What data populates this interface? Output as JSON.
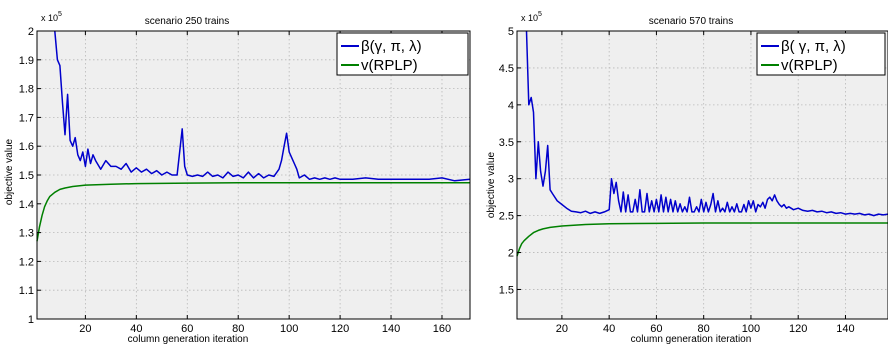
{
  "chart_data": [
    {
      "type": "line",
      "title": "scenario 250 trains",
      "xlabel": "column generation iteration",
      "ylabel": "objective value",
      "y_exponent": "x 10",
      "y_exponent_power": "5",
      "xlim": [
        1,
        171
      ],
      "ylim": [
        1.0,
        2.0
      ],
      "xticks": [
        20,
        40,
        60,
        80,
        100,
        120,
        140,
        160
      ],
      "yticks": [
        1,
        1.1,
        1.2,
        1.3,
        1.4,
        1.5,
        1.6,
        1.7,
        1.8,
        1.9,
        2
      ],
      "ytick_labels": [
        "1",
        "1.1",
        "1.2",
        "1.3",
        "1.4",
        "1.5",
        "1.6",
        "1.7",
        "1.8",
        "1.9",
        "2"
      ],
      "grid": true,
      "legend_position": "top-right",
      "series": [
        {
          "name": "β(γ, π, λ)",
          "color": "#0000cc",
          "points": [
            [
              8,
              2.0
            ],
            [
              9,
              1.9
            ],
            [
              10,
              1.88
            ],
            [
              11,
              1.75
            ],
            [
              12,
              1.64
            ],
            [
              13,
              1.78
            ],
            [
              14,
              1.62
            ],
            [
              15,
              1.6
            ],
            [
              16,
              1.63
            ],
            [
              17,
              1.57
            ],
            [
              18,
              1.55
            ],
            [
              19,
              1.58
            ],
            [
              20,
              1.53
            ],
            [
              21,
              1.59
            ],
            [
              22,
              1.54
            ],
            [
              23,
              1.57
            ],
            [
              24,
              1.55
            ],
            [
              26,
              1.52
            ],
            [
              28,
              1.55
            ],
            [
              30,
              1.53
            ],
            [
              32,
              1.53
            ],
            [
              34,
              1.52
            ],
            [
              36,
              1.54
            ],
            [
              38,
              1.51
            ],
            [
              40,
              1.525
            ],
            [
              42,
              1.51
            ],
            [
              44,
              1.52
            ],
            [
              46,
              1.505
            ],
            [
              48,
              1.515
            ],
            [
              50,
              1.5
            ],
            [
              52,
              1.51
            ],
            [
              54,
              1.5
            ],
            [
              56,
              1.5
            ],
            [
              58,
              1.66
            ],
            [
              59,
              1.53
            ],
            [
              60,
              1.5
            ],
            [
              62,
              1.495
            ],
            [
              64,
              1.5
            ],
            [
              66,
              1.495
            ],
            [
              68,
              1.51
            ],
            [
              70,
              1.495
            ],
            [
              72,
              1.5
            ],
            [
              74,
              1.49
            ],
            [
              76,
              1.51
            ],
            [
              78,
              1.495
            ],
            [
              80,
              1.5
            ],
            [
              82,
              1.49
            ],
            [
              84,
              1.51
            ],
            [
              86,
              1.49
            ],
            [
              88,
              1.505
            ],
            [
              90,
              1.49
            ],
            [
              92,
              1.5
            ],
            [
              94,
              1.495
            ],
            [
              96,
              1.52
            ],
            [
              97,
              1.55
            ],
            [
              98,
              1.6
            ],
            [
              99,
              1.645
            ],
            [
              100,
              1.58
            ],
            [
              101,
              1.56
            ],
            [
              102,
              1.54
            ],
            [
              103,
              1.52
            ],
            [
              104,
              1.49
            ],
            [
              106,
              1.5
            ],
            [
              108,
              1.485
            ],
            [
              110,
              1.49
            ],
            [
              112,
              1.485
            ],
            [
              114,
              1.49
            ],
            [
              116,
              1.485
            ],
            [
              118,
              1.49
            ],
            [
              120,
              1.485
            ],
            [
              125,
              1.485
            ],
            [
              130,
              1.49
            ],
            [
              135,
              1.485
            ],
            [
              140,
              1.485
            ],
            [
              145,
              1.485
            ],
            [
              150,
              1.485
            ],
            [
              155,
              1.485
            ],
            [
              160,
              1.49
            ],
            [
              165,
              1.48
            ],
            [
              171,
              1.485
            ]
          ]
        },
        {
          "name": "v(RPLP)",
          "color": "#008000",
          "points": [
            [
              1,
              1.27
            ],
            [
              2,
              1.32
            ],
            [
              3,
              1.36
            ],
            [
              4,
              1.39
            ],
            [
              5,
              1.41
            ],
            [
              6,
              1.425
            ],
            [
              8,
              1.44
            ],
            [
              10,
              1.45
            ],
            [
              12,
              1.455
            ],
            [
              15,
              1.46
            ],
            [
              20,
              1.465
            ],
            [
              30,
              1.468
            ],
            [
              40,
              1.47
            ],
            [
              60,
              1.472
            ],
            [
              80,
              1.473
            ],
            [
              100,
              1.473
            ],
            [
              120,
              1.473
            ],
            [
              140,
              1.473
            ],
            [
              160,
              1.473
            ],
            [
              171,
              1.473
            ]
          ]
        }
      ]
    },
    {
      "type": "line",
      "title": "scenario 570 trains",
      "xlabel": "column generation iteration",
      "ylabel": "objective value",
      "y_exponent": "x 10",
      "y_exponent_power": "5",
      "xlim": [
        1,
        158
      ],
      "ylim": [
        1.1,
        5.0
      ],
      "xticks": [
        20,
        40,
        60,
        80,
        100,
        120,
        140
      ],
      "yticks": [
        1.5,
        2,
        2.5,
        3,
        3.5,
        4,
        4.5,
        5
      ],
      "ytick_labels": [
        "1.5",
        "2",
        "2.5",
        "3",
        "3.5",
        "4",
        "4.5",
        "5"
      ],
      "grid": true,
      "legend_position": "top-right",
      "series": [
        {
          "name": "β( γ, π, λ)",
          "color": "#0000cc",
          "points": [
            [
              5,
              5.0
            ],
            [
              6,
              4.0
            ],
            [
              7,
              4.1
            ],
            [
              8,
              3.9
            ],
            [
              9,
              3.0
            ],
            [
              10,
              3.5
            ],
            [
              11,
              3.1
            ],
            [
              12,
              2.9
            ],
            [
              13,
              3.1
            ],
            [
              14,
              3.45
            ],
            [
              15,
              2.85
            ],
            [
              16,
              2.8
            ],
            [
              18,
              2.7
            ],
            [
              20,
              2.65
            ],
            [
              22,
              2.6
            ],
            [
              24,
              2.56
            ],
            [
              26,
              2.55
            ],
            [
              28,
              2.54
            ],
            [
              30,
              2.56
            ],
            [
              32,
              2.53
            ],
            [
              34,
              2.55
            ],
            [
              36,
              2.53
            ],
            [
              38,
              2.55
            ],
            [
              40,
              2.58
            ],
            [
              41,
              3.0
            ],
            [
              42,
              2.8
            ],
            [
              43,
              2.95
            ],
            [
              44,
              2.7
            ],
            [
              45,
              2.55
            ],
            [
              46,
              2.82
            ],
            [
              47,
              2.55
            ],
            [
              48,
              2.78
            ],
            [
              49,
              2.55
            ],
            [
              50,
              2.55
            ],
            [
              51,
              2.72
            ],
            [
              52,
              2.55
            ],
            [
              53,
              2.85
            ],
            [
              54,
              2.55
            ],
            [
              55,
              2.55
            ],
            [
              56,
              2.8
            ],
            [
              57,
              2.55
            ],
            [
              58,
              2.7
            ],
            [
              59,
              2.55
            ],
            [
              60,
              2.72
            ],
            [
              61,
              2.55
            ],
            [
              62,
              2.78
            ],
            [
              63,
              2.55
            ],
            [
              64,
              2.75
            ],
            [
              65,
              2.55
            ],
            [
              66,
              2.72
            ],
            [
              67,
              2.55
            ],
            [
              68,
              2.7
            ],
            [
              69,
              2.55
            ],
            [
              70,
              2.66
            ],
            [
              71,
              2.55
            ],
            [
              72,
              2.62
            ],
            [
              73,
              2.55
            ],
            [
              74,
              2.75
            ],
            [
              75,
              2.55
            ],
            [
              76,
              2.55
            ],
            [
              77,
              2.62
            ],
            [
              78,
              2.55
            ],
            [
              79,
              2.72
            ],
            [
              80,
              2.55
            ],
            [
              81,
              2.68
            ],
            [
              82,
              2.55
            ],
            [
              83,
              2.65
            ],
            [
              84,
              2.8
            ],
            [
              85,
              2.55
            ],
            [
              86,
              2.7
            ],
            [
              87,
              2.55
            ],
            [
              88,
              2.6
            ],
            [
              89,
              2.55
            ],
            [
              90,
              2.68
            ],
            [
              91,
              2.55
            ],
            [
              92,
              2.62
            ],
            [
              93,
              2.55
            ],
            [
              94,
              2.66
            ],
            [
              95,
              2.55
            ],
            [
              96,
              2.55
            ],
            [
              97,
              2.65
            ],
            [
              98,
              2.55
            ],
            [
              99,
              2.7
            ],
            [
              100,
              2.6
            ],
            [
              101,
              2.7
            ],
            [
              102,
              2.55
            ],
            [
              103,
              2.65
            ],
            [
              104,
              2.62
            ],
            [
              105,
              2.68
            ],
            [
              106,
              2.6
            ],
            [
              107,
              2.72
            ],
            [
              108,
              2.75
            ],
            [
              109,
              2.7
            ],
            [
              110,
              2.78
            ],
            [
              111,
              2.7
            ],
            [
              112,
              2.65
            ],
            [
              113,
              2.62
            ],
            [
              114,
              2.65
            ],
            [
              115,
              2.6
            ],
            [
              116,
              2.62
            ],
            [
              118,
              2.58
            ],
            [
              120,
              2.6
            ],
            [
              122,
              2.57
            ],
            [
              124,
              2.56
            ],
            [
              126,
              2.57
            ],
            [
              128,
              2.55
            ],
            [
              130,
              2.56
            ],
            [
              132,
              2.54
            ],
            [
              134,
              2.55
            ],
            [
              136,
              2.53
            ],
            [
              138,
              2.54
            ],
            [
              140,
              2.52
            ],
            [
              142,
              2.53
            ],
            [
              144,
              2.52
            ],
            [
              146,
              2.53
            ],
            [
              148,
              2.51
            ],
            [
              150,
              2.52
            ],
            [
              152,
              2.5
            ],
            [
              154,
              2.52
            ],
            [
              156,
              2.51
            ],
            [
              158,
              2.52
            ]
          ]
        },
        {
          "name": "v(RPLP)",
          "color": "#008000",
          "points": [
            [
              1,
              1.95
            ],
            [
              2,
              2.05
            ],
            [
              3,
              2.12
            ],
            [
              4,
              2.16
            ],
            [
              6,
              2.22
            ],
            [
              8,
              2.27
            ],
            [
              10,
              2.3
            ],
            [
              12,
              2.32
            ],
            [
              15,
              2.34
            ],
            [
              20,
              2.36
            ],
            [
              30,
              2.38
            ],
            [
              40,
              2.39
            ],
            [
              60,
              2.395
            ],
            [
              80,
              2.4
            ],
            [
              100,
              2.4
            ],
            [
              120,
              2.4
            ],
            [
              140,
              2.4
            ],
            [
              158,
              2.4
            ]
          ]
        }
      ]
    }
  ]
}
